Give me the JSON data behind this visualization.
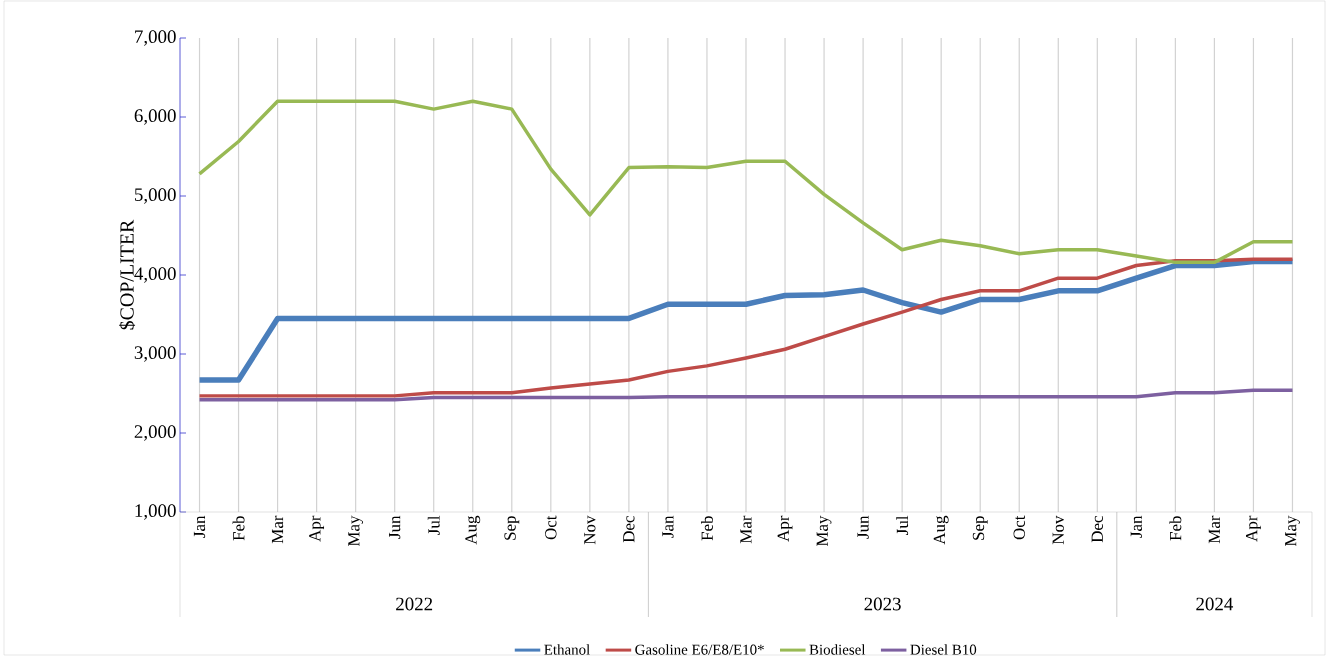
{
  "chart_data": {
    "type": "line",
    "ylabel": "$COP/LITER",
    "categories": [
      "Jan",
      "Feb",
      "Mar",
      "Apr",
      "May",
      "Jun",
      "Jul",
      "Aug",
      "Sep",
      "Oct",
      "Nov",
      "Dec",
      "Jan",
      "Feb",
      "Mar",
      "Apr",
      "May",
      "Jun",
      "Jul",
      "Aug",
      "Sep",
      "Oct",
      "Nov",
      "Dec",
      "Jan",
      "Feb",
      "Mar",
      "Apr",
      "May"
    ],
    "annotations": [
      "2022",
      "2023",
      "2024"
    ],
    "series": [
      {
        "name": "Ethanol",
        "color": "#4a7ebb",
        "values": [
          2670,
          2670,
          3450,
          3450,
          3450,
          3450,
          3450,
          3450,
          3450,
          3450,
          3450,
          3450,
          3630,
          3630,
          3630,
          3740,
          3750,
          3810,
          3650,
          3530,
          3690,
          3690,
          3800,
          3800,
          3960,
          4120,
          4120,
          4170,
          4170
        ]
      },
      {
        "name": "Gasoline E6/E8/E10*",
        "color": "#be4b48",
        "values": [
          2470,
          2470,
          2470,
          2470,
          2470,
          2470,
          2510,
          2510,
          2510,
          2570,
          2620,
          2670,
          2780,
          2850,
          2950,
          3060,
          3220,
          3380,
          3530,
          3690,
          3800,
          3800,
          3960,
          3960,
          4120,
          4180,
          4180,
          4200,
          4200
        ]
      },
      {
        "name": "Biodiesel",
        "color": "#98b954",
        "values": [
          5280,
          5690,
          6200,
          6200,
          6200,
          6200,
          6100,
          6200,
          6100,
          5340,
          4760,
          5360,
          5370,
          5360,
          5440,
          5440,
          5020,
          4660,
          4320,
          4440,
          4370,
          4270,
          4320,
          4320,
          4240,
          4160,
          4160,
          4420,
          4420
        ]
      },
      {
        "name": "Diesel B10",
        "color": "#7d60a0",
        "values": [
          2420,
          2420,
          2420,
          2420,
          2420,
          2420,
          2450,
          2450,
          2450,
          2450,
          2450,
          2450,
          2460,
          2460,
          2460,
          2460,
          2460,
          2460,
          2460,
          2460,
          2460,
          2460,
          2460,
          2460,
          2460,
          2510,
          2510,
          2540,
          2540
        ]
      }
    ],
    "ylim": [
      1000,
      7000
    ],
    "yticks": [
      {
        "value": 1000,
        "label": "1,000"
      },
      {
        "value": 2000,
        "label": "2,000"
      },
      {
        "value": 3000,
        "label": "3,000"
      },
      {
        "value": 4000,
        "label": "4,000"
      },
      {
        "value": 5000,
        "label": "5,000"
      },
      {
        "value": 6000,
        "label": "6,000"
      },
      {
        "value": 7000,
        "label": "7,000"
      }
    ],
    "grid": "x",
    "legend": "bottom",
    "marker": "none",
    "line_style": "solid"
  }
}
